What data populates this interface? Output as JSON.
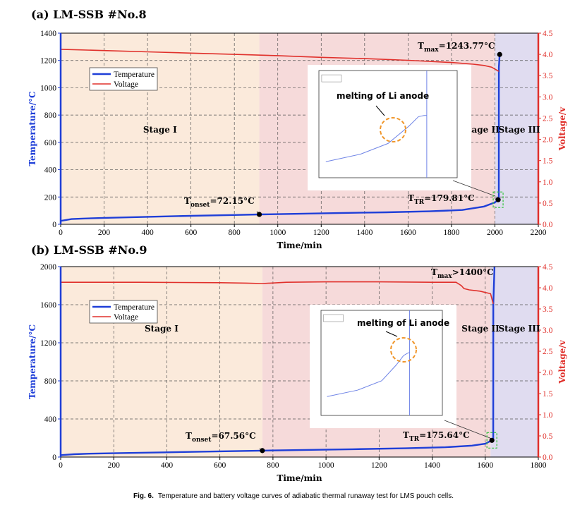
{
  "caption_label": "Fig. 6.",
  "caption_text": "Temperature and battery voltage curves of adiabatic thermal runaway test for LMS pouch cells.",
  "colors": {
    "temperature": "#1f3fd8",
    "voltage": "#e0302b",
    "stage1": "#fbeadb",
    "stage2": "#f6dada",
    "stage3": "#e0dcf0"
  },
  "chart_data": [
    {
      "type": "line",
      "title": "(a) LM-SSB #No.8",
      "xlabel": "Time/min",
      "ylabel": "Temperature/°C",
      "y2label": "Voltage/v",
      "xlim": [
        0,
        2200
      ],
      "ylim": [
        0,
        1400
      ],
      "y2lim": [
        0,
        4.5
      ],
      "xticks": [
        0,
        200,
        400,
        600,
        800,
        1000,
        1200,
        1400,
        1600,
        1800,
        2000,
        2200
      ],
      "yticks": [
        0,
        200,
        400,
        600,
        800,
        1000,
        1200,
        1400
      ],
      "y2ticks": [
        0.0,
        0.5,
        1.0,
        1.5,
        2.0,
        2.5,
        3.0,
        3.5,
        4.0,
        4.5
      ],
      "grid": true,
      "legend": {
        "position": "upper-left",
        "entries": [
          "Temperature",
          "Voltage"
        ]
      },
      "stages": [
        {
          "label": "Stage I",
          "x": [
            0,
            915
          ]
        },
        {
          "label": "Stage II",
          "x": [
            915,
            2000
          ]
        },
        {
          "label": "Stage III",
          "x": [
            2000,
            2200
          ]
        }
      ],
      "series": [
        {
          "name": "Temperature",
          "axis": "left",
          "x": [
            0,
            50,
            100,
            200,
            400,
            600,
            800,
            915,
            1100,
            1300,
            1500,
            1700,
            1850,
            1950,
            2000,
            2015,
            2018,
            2018.5,
            2022
          ],
          "y": [
            25,
            38,
            42,
            47,
            55,
            62,
            68,
            72.15,
            77,
            83,
            88,
            95,
            105,
            130,
            160,
            179.81,
            190,
            1150,
            1243.77
          ]
        },
        {
          "name": "Voltage",
          "axis": "right",
          "x": [
            0,
            200,
            400,
            600,
            800,
            1000,
            1200,
            1400,
            1600,
            1800,
            1900,
            1950,
            1985,
            2005,
            2018
          ],
          "y": [
            4.12,
            4.09,
            4.06,
            4.03,
            4.0,
            3.97,
            3.93,
            3.9,
            3.86,
            3.81,
            3.77,
            3.74,
            3.7,
            3.64,
            3.6
          ]
        }
      ],
      "annotations": [
        {
          "main": "T",
          "sub": "onset",
          "rest": "=72.15°C",
          "x": 915,
          "y": 72.15
        },
        {
          "main": "T",
          "sub": "TR",
          "rest": "=179.81°C",
          "x": 2015,
          "y": 179.81
        },
        {
          "main": "T",
          "sub": "max",
          "rest": "=1243.77°C",
          "x": 2022,
          "y": 1243.77
        }
      ],
      "inset_label": "melting of Li anode"
    },
    {
      "type": "line",
      "title": "(b) LM-SSB #No.9",
      "xlabel": "Time/min",
      "ylabel": "Temperature/°C",
      "y2label": "Voltage/v",
      "xlim": [
        0,
        1800
      ],
      "ylim": [
        0,
        2000
      ],
      "y2lim": [
        0,
        4.5
      ],
      "xticks": [
        0,
        200,
        400,
        600,
        800,
        1000,
        1200,
        1400,
        1600,
        1800
      ],
      "yticks": [
        0,
        400,
        800,
        1200,
        1600,
        2000
      ],
      "y2ticks": [
        0.0,
        0.5,
        1.0,
        1.5,
        2.0,
        2.5,
        3.0,
        3.5,
        4.0,
        4.5
      ],
      "grid": true,
      "legend": {
        "position": "upper-left",
        "entries": [
          "Temperature",
          "Voltage"
        ]
      },
      "stages": [
        {
          "label": "Stage I",
          "x": [
            0,
            760
          ]
        },
        {
          "label": "Stage II",
          "x": [
            760,
            1620
          ]
        },
        {
          "label": "Stage III",
          "x": [
            1620,
            1800
          ]
        }
      ],
      "series": [
        {
          "name": "Temperature",
          "axis": "left",
          "x": [
            0,
            50,
            100,
            200,
            400,
            600,
            760,
            900,
            1100,
            1300,
            1450,
            1550,
            1600,
            1625,
            1630,
            1630.5,
            1635
          ],
          "y": [
            20,
            30,
            35,
            40,
            50,
            60,
            67.56,
            73,
            82,
            92,
            103,
            120,
            140,
            175.64,
            190,
            1600,
            2000
          ]
        },
        {
          "name": "Voltage",
          "axis": "right",
          "x": [
            0,
            300,
            600,
            700,
            760,
            850,
            1000,
            1200,
            1400,
            1490,
            1510,
            1520,
            1540,
            1580,
            1600,
            1620,
            1630
          ],
          "y": [
            4.13,
            4.13,
            4.12,
            4.11,
            4.1,
            4.13,
            4.14,
            4.14,
            4.13,
            4.13,
            4.05,
            3.98,
            3.95,
            3.92,
            3.89,
            3.86,
            3.62
          ]
        }
      ],
      "annotations": [
        {
          "main": "T",
          "sub": "onset",
          "rest": "=67.56°C",
          "x": 760,
          "y": 67.56
        },
        {
          "main": "T",
          "sub": "TR",
          "rest": "=175.64°C",
          "x": 1625,
          "y": 175.64
        },
        {
          "main": "T",
          "sub": "max",
          "rest": ">1400°C",
          "x": null,
          "y": null
        }
      ],
      "inset_label": "melting of Li anode"
    }
  ]
}
